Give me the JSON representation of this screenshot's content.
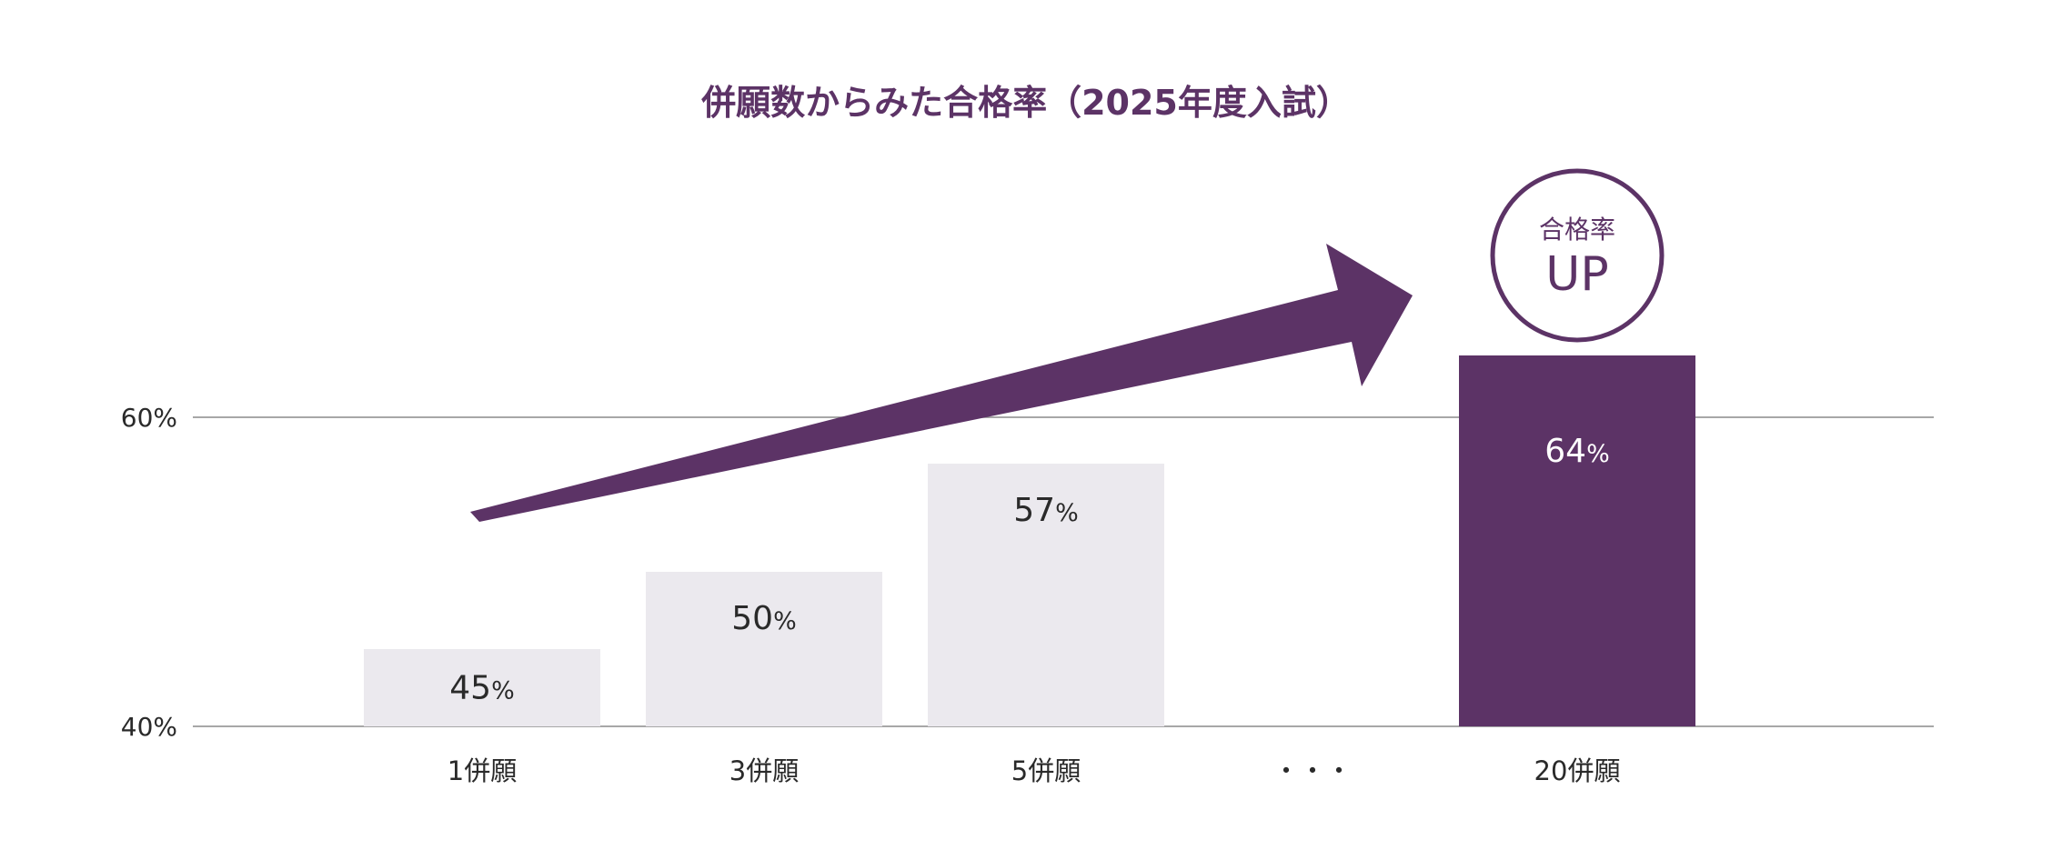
{
  "colors": {
    "accent": "#5c3366",
    "bar_default": "#ebe9ee",
    "gridline": "#8a8a8a",
    "text": "#2a2a2a",
    "label_on_accent": "#ffffff"
  },
  "chart_data": {
    "type": "bar",
    "title": "併願数からみた合格率（2025年度入試）",
    "xlabel": "",
    "ylabel": "",
    "ylim": [
      40,
      67
    ],
    "yticks": [
      {
        "value": 40,
        "label": "40%"
      },
      {
        "value": 60,
        "label": "60%"
      }
    ],
    "grid": true,
    "categories": [
      "1併願",
      "3併願",
      "5併願",
      "・・・",
      "20併願"
    ],
    "values": [
      45,
      50,
      57,
      null,
      64
    ],
    "value_labels": [
      "45",
      "50",
      "57",
      "",
      "64"
    ],
    "unit": "%",
    "highlight_index": 4,
    "annotation": {
      "arrow_icon": "trend-up-arrow-icon",
      "badge_small": "合格率",
      "badge_large": "UP"
    }
  }
}
